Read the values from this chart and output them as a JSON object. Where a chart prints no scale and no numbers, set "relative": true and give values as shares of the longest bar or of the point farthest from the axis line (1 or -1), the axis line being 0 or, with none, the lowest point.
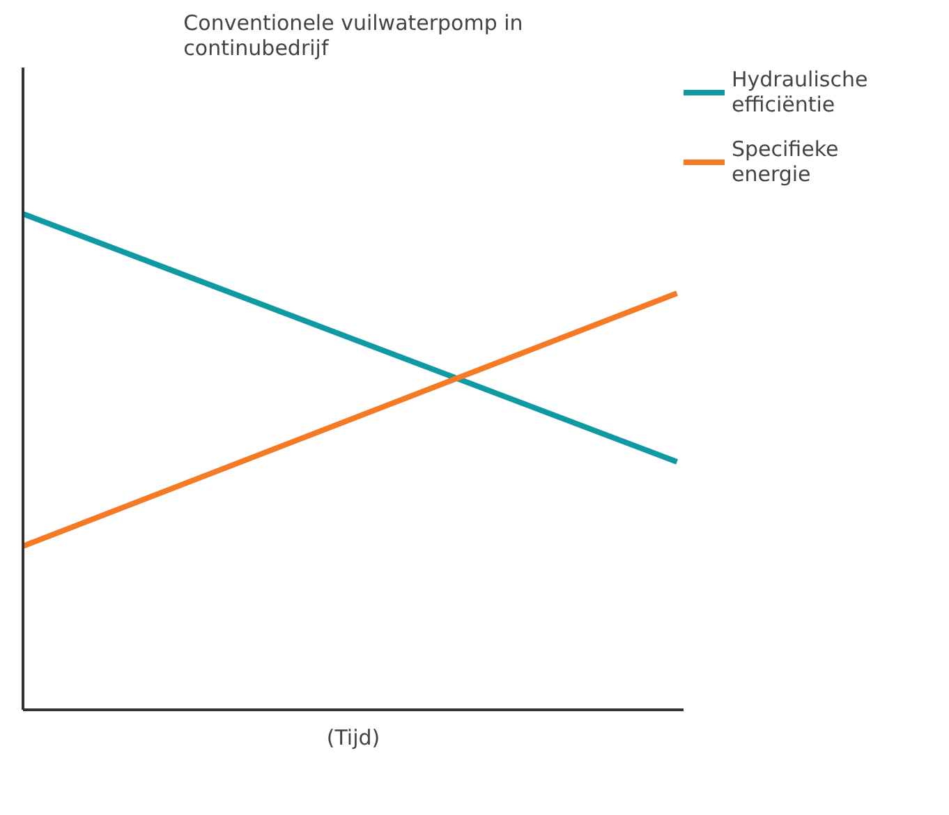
{
  "chart_data": {
    "type": "line",
    "title": "Conventionele vuilwaterpomp in continubedrijf",
    "xlabel": "(Tijd)",
    "relative": true,
    "categories": [
      null,
      null
    ],
    "series": [
      {
        "name": "Hydraulische efficiëntie",
        "color": "#0f9aa3",
        "values": [
          1,
          0.5
        ]
      },
      {
        "name": "Specifieke energie",
        "color": "#f47a25",
        "values": [
          0.33,
          0.84
        ]
      }
    ],
    "legend": "right",
    "grid": false,
    "marker": "none",
    "line_style": "solid"
  }
}
